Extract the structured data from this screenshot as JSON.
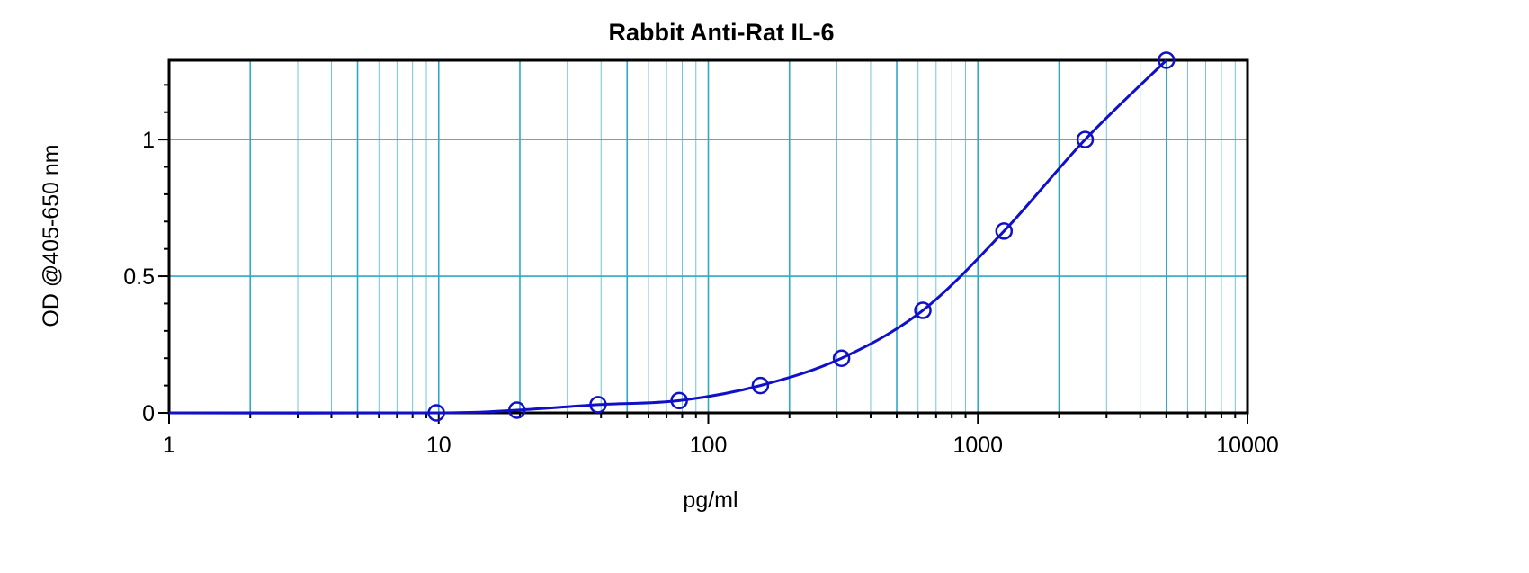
{
  "chart_data": {
    "type": "scatter",
    "title": "Rabbit Anti-Rat IL-6",
    "xlabel": "pg/ml",
    "ylabel": "OD @405-650 nm",
    "x_scale": "log",
    "xlim": [
      1,
      10000
    ],
    "ylim": [
      0,
      1.29
    ],
    "x_ticks": [
      1,
      10,
      100,
      1000,
      10000
    ],
    "x_tick_labels": [
      "1",
      "10",
      "100",
      "1000",
      "10000"
    ],
    "y_ticks": [
      0,
      0.5,
      1
    ],
    "y_tick_labels": [
      "0",
      "0.5",
      "1"
    ],
    "grid": true,
    "legend": "none",
    "colors": {
      "series": "#1010c8",
      "grid": "#2fa8c8",
      "axes": "#000000"
    },
    "series": [
      {
        "x": [
          9.8,
          19.5,
          39,
          78,
          156,
          312,
          625,
          1250,
          2500,
          5000
        ],
        "y": [
          0.0,
          0.01,
          0.03,
          0.045,
          0.1,
          0.2,
          0.375,
          0.665,
          1.0,
          1.29
        ]
      }
    ]
  }
}
